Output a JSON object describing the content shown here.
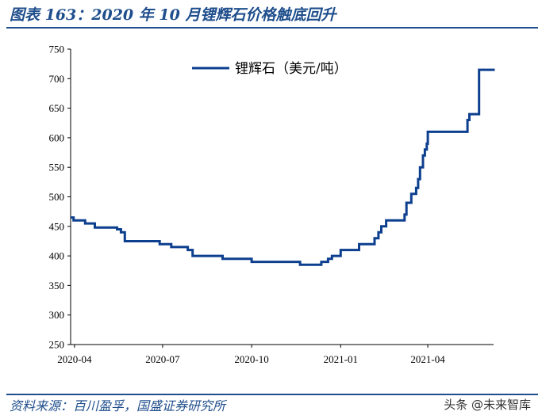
{
  "figure": {
    "title": "图表 163：2020 年 10 月锂辉石价格触底回升",
    "source": "资料来源：百川盈孚，国盛证券研究所",
    "watermark": "头条 @未来智库",
    "line_color": "#0d3f8f",
    "accent_color": "#1f4e8c"
  },
  "chart_data": {
    "type": "line",
    "title": "",
    "xlabel": "",
    "ylabel": "",
    "ylim": [
      250,
      750
    ],
    "yticks": [
      250,
      300,
      350,
      400,
      450,
      500,
      550,
      600,
      650,
      700,
      750
    ],
    "xlim": [
      "2020-03-28",
      "2021-06-08"
    ],
    "xticks": [
      "2020-04",
      "2020-07",
      "2020-10",
      "2021-01",
      "2021-04"
    ],
    "xtick_dates": [
      "2020-04-01",
      "2020-07-01",
      "2020-10-01",
      "2021-01-01",
      "2021-04-01"
    ],
    "grid": false,
    "legend_position": "top-right",
    "series": [
      {
        "name": "锂辉石（美元/吨）",
        "step": true,
        "x": [
          "2020-03-28",
          "2020-03-31",
          "2020-04-05",
          "2020-04-12",
          "2020-04-15",
          "2020-04-18",
          "2020-04-22",
          "2020-05-15",
          "2020-05-19",
          "2020-05-23",
          "2020-05-28",
          "2020-06-01",
          "2020-06-08",
          "2020-06-28",
          "2020-07-10",
          "2020-07-27",
          "2020-08-01",
          "2020-08-15",
          "2020-08-27",
          "2020-09-01",
          "2020-09-28",
          "2020-10-01",
          "2020-10-15",
          "2020-10-25",
          "2020-11-05",
          "2020-11-12",
          "2020-11-20",
          "2020-12-12",
          "2020-12-15",
          "2020-12-19",
          "2020-12-23",
          "2021-01-01",
          "2021-01-03",
          "2021-01-06",
          "2021-01-08",
          "2021-01-20",
          "2021-02-03",
          "2021-02-05",
          "2021-02-09",
          "2021-02-12",
          "2021-02-17",
          "2021-02-22",
          "2021-03-06",
          "2021-03-08",
          "2021-03-10",
          "2021-03-15",
          "2021-03-17",
          "2021-03-20",
          "2021-03-22",
          "2021-03-24",
          "2021-03-27",
          "2021-03-29",
          "2021-03-31",
          "2021-04-01",
          "2021-05-10",
          "2021-05-12",
          "2021-05-14",
          "2021-05-19",
          "2021-05-20",
          "2021-05-24",
          "2021-06-08"
        ],
        "values": [
          465,
          460,
          460,
          455,
          455,
          455,
          448,
          445,
          440,
          425,
          425,
          425,
          425,
          420,
          415,
          410,
          400,
          400,
          400,
          395,
          395,
          390,
          390,
          390,
          390,
          390,
          385,
          390,
          390,
          395,
          400,
          410,
          410,
          410,
          410,
          420,
          420,
          430,
          440,
          450,
          460,
          460,
          460,
          470,
          490,
          505,
          505,
          515,
          530,
          550,
          570,
          580,
          590,
          610,
          610,
          630,
          640,
          640,
          640,
          715,
          713
        ]
      }
    ]
  }
}
